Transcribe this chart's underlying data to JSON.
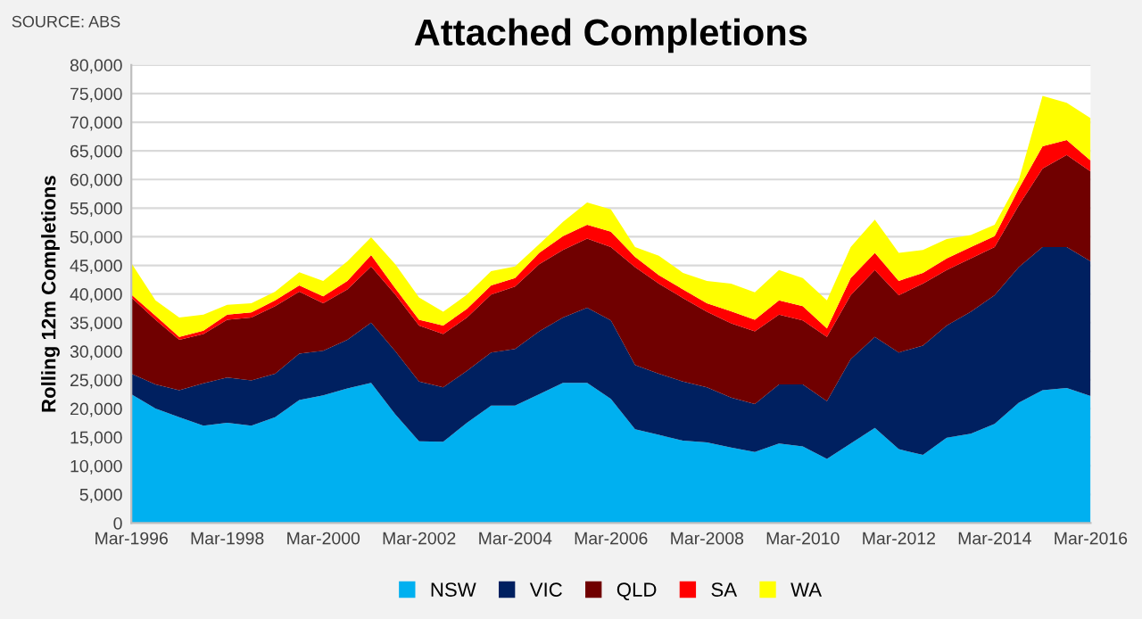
{
  "chart_data": {
    "type": "area",
    "stacked": true,
    "title": "Attached Completions",
    "ylabel": "Rolling 12m Completions",
    "annotations": [
      "SOURCE: ABS"
    ],
    "x": [
      "1996-03",
      "1996-09",
      "1997-03",
      "1997-09",
      "1998-03",
      "1998-09",
      "1999-03",
      "1999-09",
      "2000-03",
      "2000-09",
      "2001-03",
      "2001-09",
      "2002-03",
      "2002-09",
      "2003-03",
      "2003-09",
      "2004-03",
      "2004-09",
      "2005-03",
      "2005-09",
      "2006-03",
      "2006-09",
      "2007-03",
      "2007-09",
      "2008-03",
      "2008-09",
      "2009-03",
      "2009-09",
      "2010-03",
      "2010-09",
      "2011-03",
      "2011-09",
      "2012-03",
      "2012-09",
      "2013-03",
      "2013-09",
      "2014-03",
      "2014-09",
      "2015-03",
      "2015-09",
      "2016-03"
    ],
    "series": [
      {
        "name": "NSW",
        "color": "#00b0f0",
        "values": [
          22500,
          20000,
          18500,
          17000,
          17500,
          17000,
          18500,
          21500,
          22300,
          23500,
          24500,
          19000,
          14300,
          14200,
          17500,
          20500,
          20500,
          22500,
          24500,
          24500,
          21700,
          16400,
          15400,
          14400,
          14100,
          13200,
          12400,
          13900,
          13400,
          11200,
          13900,
          16600,
          12900,
          11900,
          14900,
          15600,
          17300,
          21000,
          23200,
          23600,
          22200
        ]
      },
      {
        "name": "VIC",
        "color": "#002060",
        "values": [
          3600,
          4200,
          4700,
          7400,
          7900,
          7900,
          7600,
          8100,
          7800,
          8500,
          10500,
          11000,
          10400,
          9500,
          9100,
          9300,
          9900,
          11000,
          11400,
          13100,
          13700,
          11200,
          10700,
          10300,
          9600,
          8700,
          8400,
          10300,
          10800,
          10100,
          14700,
          15900,
          16900,
          19100,
          19600,
          21300,
          22500,
          23700,
          25000,
          24600,
          23500
        ]
      },
      {
        "name": "QLD",
        "color": "#700000",
        "values": [
          13300,
          11300,
          8800,
          8600,
          10100,
          11000,
          11800,
          10800,
          8300,
          8800,
          9800,
          9900,
          9800,
          9300,
          9300,
          10100,
          10900,
          11700,
          11800,
          12100,
          12800,
          17100,
          15700,
          14600,
          13200,
          13000,
          12700,
          12200,
          11200,
          11200,
          11200,
          11700,
          10000,
          10800,
          9700,
          9300,
          8400,
          10800,
          13700,
          16100,
          15700
        ]
      },
      {
        "name": "SA",
        "color": "#ff0000",
        "values": [
          500,
          700,
          500,
          600,
          900,
          900,
          1000,
          1100,
          1200,
          1500,
          2000,
          1100,
          1000,
          1500,
          1500,
          1600,
          1500,
          2000,
          2400,
          2400,
          2700,
          1800,
          1500,
          1500,
          1500,
          2100,
          2000,
          2500,
          2500,
          1500,
          3000,
          3000,
          2500,
          1900,
          2000,
          2000,
          1900,
          2900,
          3900,
          2600,
          1900
        ]
      },
      {
        "name": "WA",
        "color": "#ffff00",
        "values": [
          5500,
          2700,
          3400,
          2800,
          1700,
          1600,
          1500,
          2300,
          2700,
          3400,
          3100,
          4200,
          3900,
          2400,
          2500,
          2500,
          2000,
          1500,
          2500,
          3900,
          3900,
          1700,
          3400,
          2900,
          3900,
          4800,
          4800,
          5300,
          4900,
          4900,
          5400,
          5800,
          4900,
          4000,
          3400,
          2100,
          2000,
          1500,
          8800,
          6500,
          7400
        ]
      }
    ],
    "xlim": [
      "1996-03",
      "2016-03"
    ],
    "xticks": [
      {
        "value": "1996-03",
        "label": "Mar-1996"
      },
      {
        "value": "1998-03",
        "label": "Mar-1998"
      },
      {
        "value": "2000-03",
        "label": "Mar-2000"
      },
      {
        "value": "2002-03",
        "label": "Mar-2002"
      },
      {
        "value": "2004-03",
        "label": "Mar-2004"
      },
      {
        "value": "2006-03",
        "label": "Mar-2006"
      },
      {
        "value": "2008-03",
        "label": "Mar-2008"
      },
      {
        "value": "2010-03",
        "label": "Mar-2010"
      },
      {
        "value": "2012-03",
        "label": "Mar-2012"
      },
      {
        "value": "2014-03",
        "label": "Mar-2014"
      },
      {
        "value": "2016-03",
        "label": "Mar-2016"
      }
    ],
    "ylim": [
      0,
      80000
    ],
    "yticks": [
      0,
      {
        "value": 5000,
        "label": "5,000"
      },
      {
        "value": 10000,
        "label": "10,000"
      },
      {
        "value": 15000,
        "label": "15,000"
      },
      {
        "value": 20000,
        "label": "20,000"
      },
      {
        "value": 25000,
        "label": "25,000"
      },
      {
        "value": 30000,
        "label": "30,000"
      },
      {
        "value": 35000,
        "label": "35,000"
      },
      {
        "value": 40000,
        "label": "40,000"
      },
      {
        "value": 45000,
        "label": "45,000"
      },
      {
        "value": 50000,
        "label": "50,000"
      },
      {
        "value": 55000,
        "label": "55,000"
      },
      {
        "value": 60000,
        "label": "60,000"
      },
      {
        "value": 65000,
        "label": "65,000"
      },
      {
        "value": 70000,
        "label": "70,000"
      },
      {
        "value": 75000,
        "label": "75,000"
      },
      {
        "value": 80000,
        "label": "80,000"
      }
    ],
    "grid": "y",
    "legend": "bottom"
  }
}
